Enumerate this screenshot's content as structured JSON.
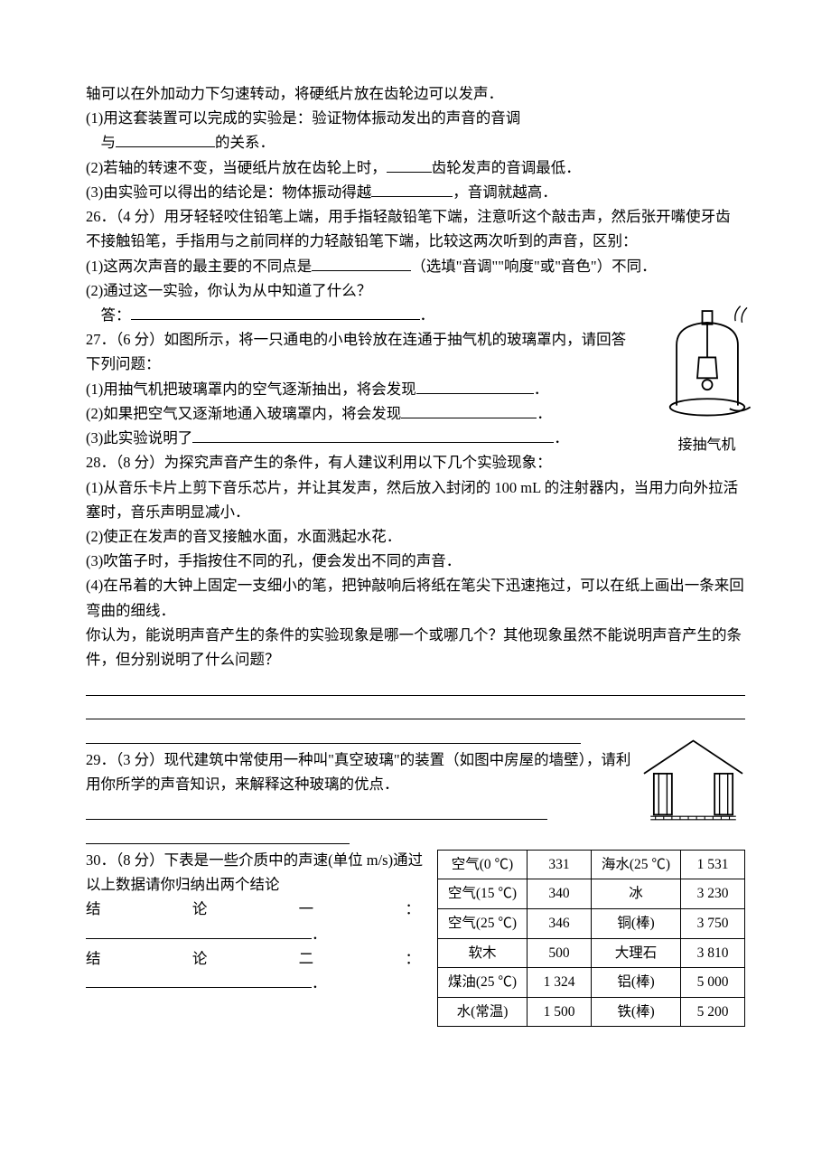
{
  "intro": "轴可以在外加动力下匀速转动，将硬纸片放在齿轮边可以发声．",
  "q25": {
    "item1_pre": "(1)用这套装置可以完成的实验是：验证物体振动发出的声音的音调",
    "item1_cont_pre": "与",
    "item1_blank_w": 110,
    "item1_post": "的关系．",
    "item2_pre": "(2)若轴的转速不变，当硬纸片放在齿轮上时，",
    "item2_blank_w": 50,
    "item2_post": "齿轮发声的音调最低．",
    "item3_pre": "(3)由实验可以得出的结论是：物体振动得越",
    "item3_blank_w": 90,
    "item3_post": "，音调就越高．"
  },
  "q26": {
    "head": "26．（4 分）用牙轻轻咬住铅笔上端，用手指轻敲铅笔下端，注意听这个敲击声，然后张开嘴使牙齿不接触铅笔，手指用与之前同样的力轻敲铅笔下端，比较这两次听到的声音，区别：",
    "item1_pre": "(1)这两次声音的最主要的不同点是",
    "item1_blank_w": 110,
    "item1_post": "（选填\"音调\"\"响度\"或\"音色\"）不同．",
    "item2_q": "(2)通过这一实验，你认为从中知道了什么？",
    "item2_ans_label": "答："
  },
  "q27": {
    "head": "27．（6 分）如图所示，将一只通电的小电铃放在连通于抽气机的玻璃罩内，请回答下列问题：",
    "item1_pre": "(1)用抽气机把玻璃罩内的空气逐渐抽出，将会发现",
    "item1_blank_w": 130,
    "item2_pre": "(2)如果把空气又逐渐地通入玻璃罩内，将会发现",
    "item2_blank_w": 150,
    "item3_pre": "(3)此实验说明了",
    "item3_blank_w": 400,
    "caption": "接抽气机"
  },
  "q28": {
    "head": "28．（8 分）为探究声音产生的条件，有人建议利用以下几个实验现象：",
    "item1": "(1)从音乐卡片上剪下音乐芯片，并让其发声，然后放入封闭的 100 mL 的注射器内，当用力向外拉活塞时，音乐声明显减小．",
    "item2": "(2)使正在发声的音叉接触水面，水面溅起水花．",
    "item3": "(3)吹笛子时，手指按住不同的孔，便会发出不同的声音．",
    "item4": "(4)在吊着的大钟上固定一支细小的笔，把钟敲响后将纸在笔尖下迅速拖过，可以在纸上画出一条来回弯曲的细线．",
    "prompt": "你认为，能说明声音产生的条件的实验现象是哪一个或哪几个？其他现象虽然不能说明声音产生的条件，但分别说明了什么问题？"
  },
  "q29": {
    "head": "29．（3 分）现代建筑中常使用一种叫\"真空玻璃\"的装置（如图中房屋的墙壁），请利用你所学的声音知识，来解释这种玻璃的优点．"
  },
  "q30": {
    "head_pre": "30．（8 分）下表是一些介质中的声速(单位 m/s)通过以上数据请你归纳出两个结论",
    "c1_pre": "结论一：",
    "c2_pre": "结论二：",
    "table_rows": [
      [
        "空气(0 ℃)",
        "331",
        "海水(25 ℃)",
        "1 531"
      ],
      [
        "空气(15 ℃)",
        "340",
        "冰",
        "3 230"
      ],
      [
        "空气(25 ℃)",
        "346",
        "铜(棒)",
        "3 750"
      ],
      [
        "软木",
        "500",
        "大理石",
        "3 810"
      ],
      [
        "煤油(25 ℃)",
        "1 324",
        "铝(棒)",
        "5 000"
      ],
      [
        "水(常温)",
        "1 500",
        "铁(棒)",
        "5 200"
      ]
    ]
  },
  "colors": {
    "text": "#000000",
    "bg": "#ffffff",
    "rule": "#000000"
  }
}
